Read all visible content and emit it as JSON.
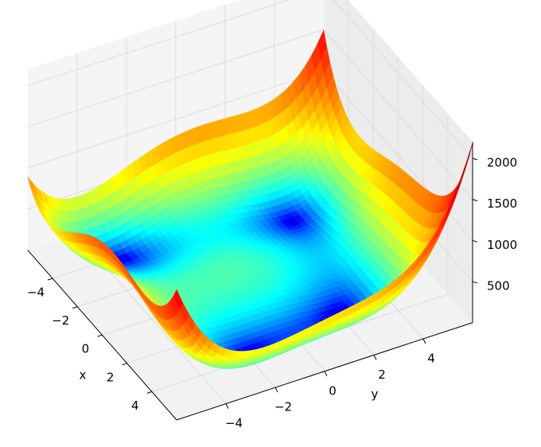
{
  "chart_data": {
    "type": "surface",
    "xlabel": "x",
    "ylabel": "y",
    "xlim": [
      -6,
      6
    ],
    "ylim": [
      -6,
      6
    ],
    "zlim": [
      0,
      2200
    ],
    "xticks": [
      {
        "value": -4,
        "label": "−4"
      },
      {
        "value": -2,
        "label": "−2"
      },
      0,
      2,
      4
    ],
    "yticks": [
      {
        "value": -4,
        "label": "−4"
      },
      {
        "value": -2,
        "label": "−2"
      },
      0,
      2,
      4
    ],
    "zticks": [
      500,
      1000,
      1500,
      2000
    ],
    "colormap": "jet",
    "grid": true
  }
}
